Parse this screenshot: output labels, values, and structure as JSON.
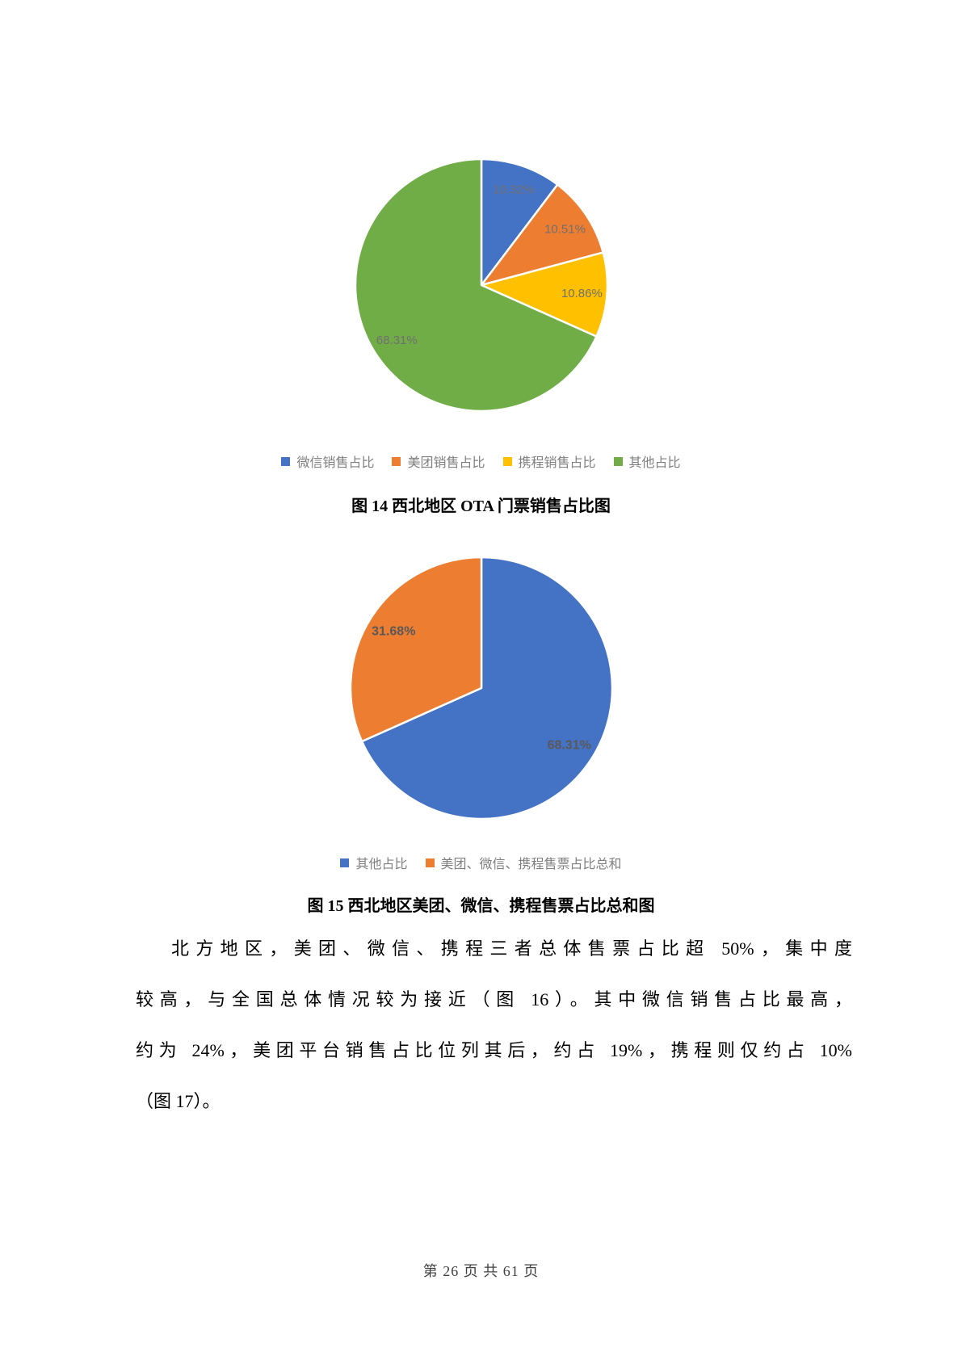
{
  "chart_data": [
    {
      "type": "pie",
      "caption": "图 14 西北地区 OTA 门票销售占比图",
      "legend_position": "bottom",
      "label_color": "#707070",
      "label_bold": false,
      "slices": [
        {
          "label": "微信销售占比",
          "value": 10.32,
          "data_label": "10.32%",
          "color": "#4472C4"
        },
        {
          "label": "美团销售占比",
          "value": 10.51,
          "data_label": "10.51%",
          "color": "#ED7D31"
        },
        {
          "label": "携程销售占比",
          "value": 10.86,
          "data_label": "10.86%",
          "color": "#FFC000"
        },
        {
          "label": "其他占比",
          "value": 68.31,
          "data_label": "68.31%",
          "color": "#70AD47"
        }
      ]
    },
    {
      "type": "pie",
      "caption": "图 15 西北地区美团、微信、携程售票占比总和图",
      "legend_position": "bottom",
      "label_color": "#595959",
      "label_bold": true,
      "slices": [
        {
          "label": "其他占比",
          "value": 68.31,
          "data_label": "68.31%",
          "color": "#4472C4"
        },
        {
          "label": "美团、微信、携程售票占比总和",
          "value": 31.68,
          "data_label": "31.68%",
          "color": "#ED7D31"
        }
      ]
    }
  ],
  "paragraph": {
    "lines": [
      "北方地区，美团、微信、携程三者总体售票占比超 50%，集中度",
      "较高，与全国总体情况较为接近（图 16）。其中微信销售占比最高，",
      "约为 24%，美团平台销售占比位列其后，约占 19%，携程则仅约占 10%",
      "（图 17）。"
    ]
  },
  "footer": {
    "text": "第 26 页 共 61 页"
  }
}
